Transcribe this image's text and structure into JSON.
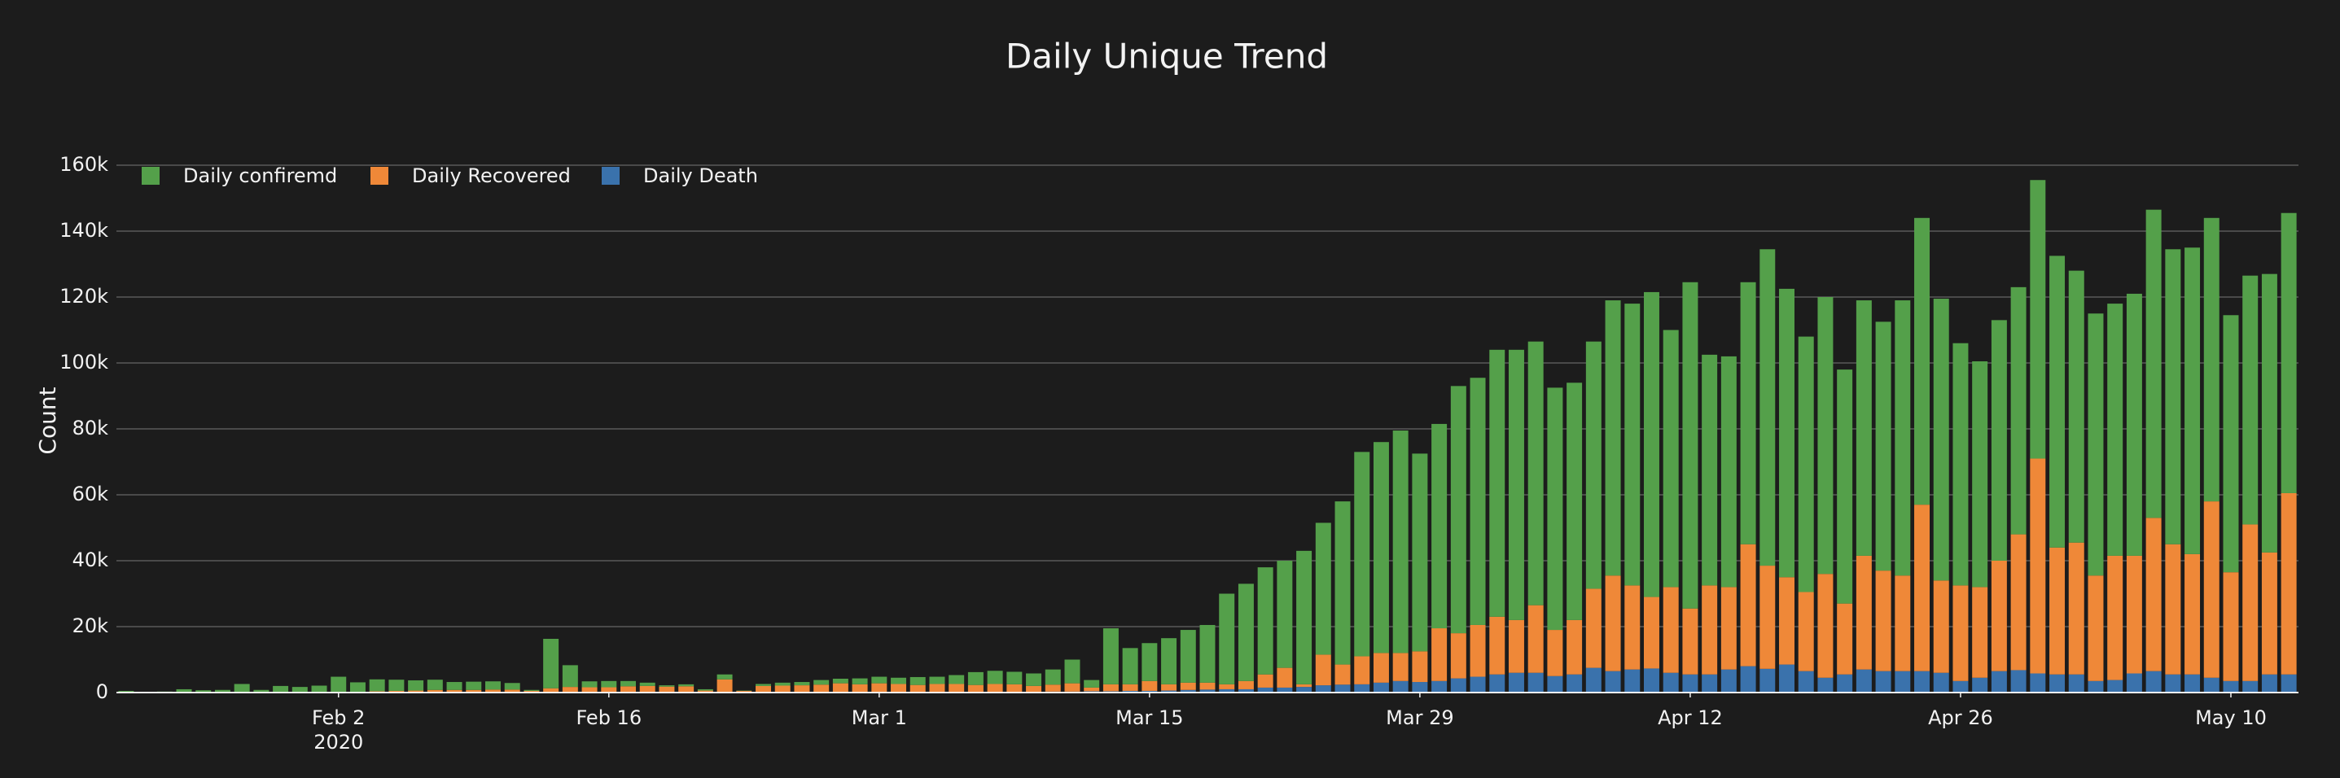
{
  "chart_data": {
    "type": "bar",
    "barmode": "stack",
    "title": "Daily Unique Trend",
    "y_label": "Count",
    "x_year_label": "2020",
    "x": [
      "2020-01-22",
      "2020-01-23",
      "2020-01-24",
      "2020-01-25",
      "2020-01-26",
      "2020-01-27",
      "2020-01-28",
      "2020-01-29",
      "2020-01-30",
      "2020-01-31",
      "2020-02-01",
      "2020-02-02",
      "2020-02-03",
      "2020-02-04",
      "2020-02-05",
      "2020-02-06",
      "2020-02-07",
      "2020-02-08",
      "2020-02-09",
      "2020-02-10",
      "2020-02-11",
      "2020-02-12",
      "2020-02-13",
      "2020-02-14",
      "2020-02-15",
      "2020-02-16",
      "2020-02-17",
      "2020-02-18",
      "2020-02-19",
      "2020-02-20",
      "2020-02-21",
      "2020-02-22",
      "2020-02-23",
      "2020-02-24",
      "2020-02-25",
      "2020-02-26",
      "2020-02-27",
      "2020-02-28",
      "2020-02-29",
      "2020-03-01",
      "2020-03-02",
      "2020-03-03",
      "2020-03-04",
      "2020-03-05",
      "2020-03-06",
      "2020-03-07",
      "2020-03-08",
      "2020-03-09",
      "2020-03-10",
      "2020-03-11",
      "2020-03-12",
      "2020-03-13",
      "2020-03-14",
      "2020-03-15",
      "2020-03-16",
      "2020-03-17",
      "2020-03-18",
      "2020-03-19",
      "2020-03-20",
      "2020-03-21",
      "2020-03-22",
      "2020-03-23",
      "2020-03-24",
      "2020-03-25",
      "2020-03-26",
      "2020-03-27",
      "2020-03-28",
      "2020-03-29",
      "2020-03-30",
      "2020-03-31",
      "2020-04-01",
      "2020-04-02",
      "2020-04-03",
      "2020-04-04",
      "2020-04-05",
      "2020-04-06",
      "2020-04-07",
      "2020-04-08",
      "2020-04-09",
      "2020-04-10",
      "2020-04-11",
      "2020-04-12",
      "2020-04-13",
      "2020-04-14",
      "2020-04-15",
      "2020-04-16",
      "2020-04-17",
      "2020-04-18",
      "2020-04-19",
      "2020-04-20",
      "2020-04-21",
      "2020-04-22",
      "2020-04-23",
      "2020-04-24",
      "2020-04-25",
      "2020-04-26",
      "2020-04-27",
      "2020-04-28",
      "2020-04-29",
      "2020-04-30",
      "2020-05-01",
      "2020-05-02",
      "2020-05-03",
      "2020-05-04",
      "2020-05-05",
      "2020-05-06",
      "2020-05-07",
      "2020-05-08",
      "2020-05-09",
      "2020-05-10",
      "2020-05-11",
      "2020-05-12",
      "2020-05-13"
    ],
    "series": [
      {
        "name": "Daily confiremd",
        "color": "#54a04a",
        "values": [
          500,
          100,
          300,
          1000,
          700,
          800,
          2500,
          800,
          2000,
          1700,
          2000,
          4600,
          2900,
          3600,
          3400,
          3100,
          3100,
          2400,
          2500,
          2500,
          2000,
          300,
          15000,
          6600,
          1800,
          1900,
          1600,
          1000,
          400,
          600,
          400,
          1500,
          100,
          600,
          900,
          1000,
          1400,
          1400,
          1800,
          2000,
          1900,
          2400,
          2200,
          2700,
          3900,
          4000,
          3800,
          3800,
          4600,
          7200,
          2300,
          17000,
          11000,
          11500,
          14000,
          16000,
          17500,
          27500,
          29500,
          32500,
          32500,
          40500,
          40000,
          49500,
          62000,
          64000,
          67500,
          60000,
          62000,
          75000,
          75000,
          81000,
          82000,
          80000,
          73500,
          72000,
          75000,
          83500,
          85500,
          92500,
          78000,
          99000,
          70000,
          70000,
          79500,
          96000,
          87500,
          77500,
          84000,
          71000,
          77500,
          75500,
          83500,
          87000,
          85500,
          73500,
          68500,
          73000,
          75000,
          84500,
          88500,
          82500,
          79500,
          76500,
          79500,
          93500,
          89500,
          93000,
          86000,
          78000,
          75500,
          84500,
          85000
        ]
      },
      {
        "name": "Daily Recovered",
        "color": "#ef8838",
        "values": [
          0,
          0,
          0,
          0,
          0,
          0,
          100,
          0,
          0,
          0,
          100,
          200,
          200,
          300,
          400,
          500,
          700,
          700,
          700,
          800,
          800,
          400,
          1100,
          1600,
          1500,
          1500,
          1800,
          1900,
          1700,
          1800,
          500,
          3900,
          400,
          1800,
          2000,
          2100,
          2300,
          2700,
          2400,
          2700,
          2500,
          2200,
          2500,
          2500,
          2200,
          2500,
          2300,
          1800,
          2100,
          2500,
          1100,
          2100,
          2000,
          3000,
          1900,
          2200,
          2100,
          1500,
          2500,
          4000,
          6000,
          800,
          9300,
          6100,
          8500,
          9000,
          8500,
          9300,
          16000,
          13700,
          15700,
          17500,
          16000,
          20500,
          14000,
          16500,
          24000,
          29000,
          25500,
          21700,
          26000,
          20000,
          27000,
          25000,
          37000,
          31300,
          26500,
          24000,
          31500,
          21500,
          34500,
          30500,
          29000,
          50500,
          28000,
          29000,
          27500,
          33500,
          41200,
          65200,
          38500,
          40000,
          32000,
          37700,
          35700,
          46500,
          39500,
          36500,
          53500,
          33000,
          47500,
          37000,
          55000
        ]
      },
      {
        "name": "Daily Death",
        "color": "#3a72ac",
        "values": [
          0,
          0,
          0,
          0,
          0,
          0,
          0,
          0,
          0,
          0,
          0,
          0,
          0,
          100,
          100,
          100,
          100,
          100,
          100,
          100,
          100,
          100,
          200,
          100,
          100,
          100,
          100,
          100,
          100,
          100,
          100,
          100,
          100,
          200,
          100,
          100,
          100,
          100,
          100,
          100,
          100,
          100,
          100,
          100,
          100,
          100,
          200,
          200,
          300,
          300,
          400,
          400,
          500,
          500,
          600,
          800,
          900,
          1000,
          1000,
          1500,
          1500,
          1700,
          2200,
          2400,
          2500,
          3000,
          3500,
          3200,
          3500,
          4300,
          4800,
          5500,
          6000,
          6000,
          5000,
          5500,
          7500,
          6500,
          7000,
          7300,
          6000,
          5500,
          5500,
          7000,
          8000,
          7200,
          8500,
          6500,
          4500,
          5500,
          7000,
          6500,
          6500,
          6500,
          6000,
          3500,
          4500,
          6500,
          6800,
          5800,
          5500,
          5500,
          3500,
          3800,
          5800,
          6500,
          5500,
          5500,
          4500,
          3500,
          3500,
          5500,
          5500
        ]
      }
    ],
    "xlim": [
      "2020-01-21T12:00:00Z",
      "2020-05-13T12:00:00Z"
    ],
    "xticks": [
      {
        "value": "2020-02-02",
        "label": "Feb 2"
      },
      {
        "value": "2020-02-16",
        "label": "Feb 16"
      },
      {
        "value": "2020-03-01",
        "label": "Mar 1"
      },
      {
        "value": "2020-03-15",
        "label": "Mar 15"
      },
      {
        "value": "2020-03-29",
        "label": "Mar 29"
      },
      {
        "value": "2020-04-12",
        "label": "Apr 12"
      },
      {
        "value": "2020-04-26",
        "label": "Apr 26"
      },
      {
        "value": "2020-05-10",
        "label": "May 10"
      }
    ],
    "ylim": [
      0,
      160000
    ],
    "yticks": [
      0,
      {
        "value": 20000,
        "label": "20k"
      },
      {
        "value": 40000,
        "label": "40k"
      },
      {
        "value": 60000,
        "label": "60k"
      },
      {
        "value": 80000,
        "label": "80k"
      },
      {
        "value": 100000,
        "label": "100k"
      },
      {
        "value": 120000,
        "label": "120k"
      },
      {
        "value": 140000,
        "label": "140k"
      },
      {
        "value": 160000,
        "label": "160k"
      }
    ],
    "grid": true,
    "legend": "top-left",
    "background": "#1c1c1c"
  }
}
